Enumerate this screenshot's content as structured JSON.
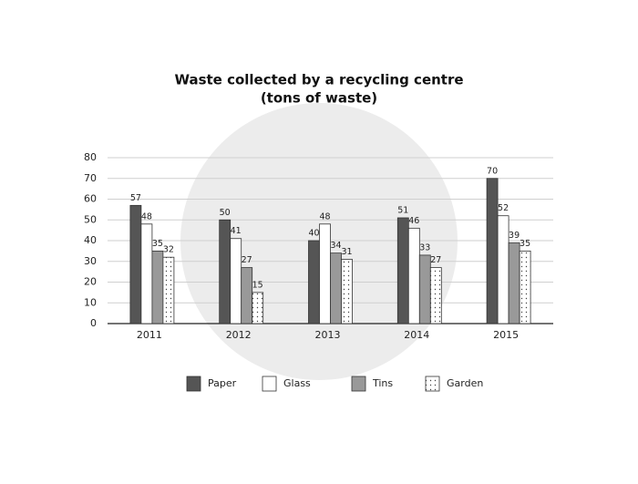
{
  "chart_data": {
    "type": "bar",
    "title": "Waste collected by a recycling centre",
    "subtitle": "(tons of waste)",
    "categories": [
      "2011",
      "2012",
      "2013",
      "2014",
      "2015"
    ],
    "series": [
      {
        "name": "Paper",
        "color": "#555555",
        "values": [
          57,
          50,
          40,
          51,
          70
        ]
      },
      {
        "name": "Glass",
        "color": "#ffffff",
        "values": [
          48,
          41,
          48,
          46,
          52
        ]
      },
      {
        "name": "Tins",
        "color": "#999999",
        "values": [
          35,
          27,
          34,
          33,
          39
        ]
      },
      {
        "name": "Garden",
        "color": "#ffffff",
        "pattern": "dots",
        "values": [
          32,
          15,
          31,
          27,
          35
        ]
      }
    ],
    "ylim": [
      0,
      80
    ],
    "yticks": [
      0,
      10,
      20,
      30,
      40,
      50,
      60,
      70,
      80
    ],
    "grid": true,
    "legend": "bottom"
  }
}
